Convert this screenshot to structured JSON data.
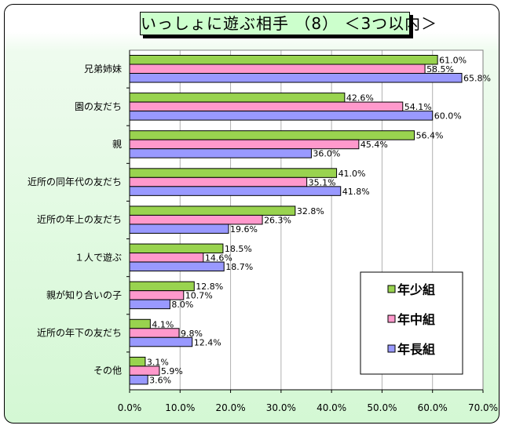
{
  "title": "いっしょに遊ぶ相手 （8） ＜3つ以内＞",
  "chart_data": {
    "type": "bar",
    "orientation": "horizontal",
    "title": "いっしょに遊ぶ相手 （8） ＜3つ以内＞",
    "categories": [
      "兄弟姉妹",
      "園の友だち",
      "親",
      "近所の同年代の友だち",
      "近所の年上の友だち",
      "１人で遊ぶ",
      "親が知り合いの子",
      "近所の年下の友だち",
      "その他"
    ],
    "series": [
      {
        "name": "年少組",
        "color": "#99d34f",
        "values": [
          61.0,
          42.6,
          56.4,
          41.0,
          32.8,
          18.5,
          12.8,
          4.1,
          3.1
        ]
      },
      {
        "name": "年中組",
        "color": "#ff99cc",
        "values": [
          58.5,
          54.1,
          45.4,
          35.1,
          26.3,
          14.6,
          10.7,
          9.8,
          5.9
        ]
      },
      {
        "name": "年長組",
        "color": "#9999ff",
        "values": [
          65.8,
          60.0,
          36.0,
          41.8,
          19.6,
          18.7,
          8.0,
          12.4,
          3.6
        ]
      }
    ],
    "xlim": [
      0,
      70
    ],
    "xticks": [
      "0.0%",
      "10.0%",
      "20.0%",
      "30.0%",
      "40.0%",
      "50.0%",
      "60.0%",
      "70.0%"
    ],
    "value_format": "percent-1dp",
    "grid": true,
    "legend_position": "bottom-right",
    "xlabel": "",
    "ylabel": ""
  }
}
